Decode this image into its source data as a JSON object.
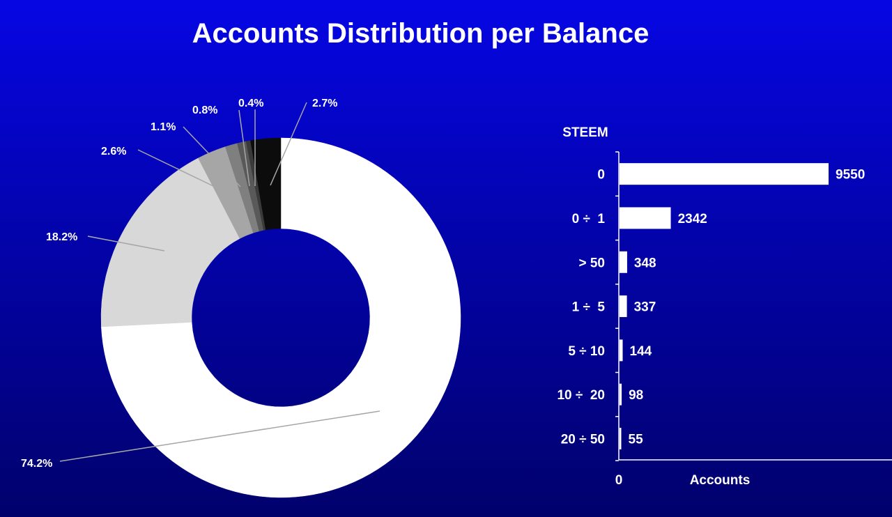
{
  "title": "Accounts Distribution per Balance",
  "chart_data": [
    {
      "type": "pie",
      "variant": "donut",
      "slices": [
        {
          "label": "74.2%",
          "value": 74.2,
          "color": "#ffffff"
        },
        {
          "label": "18.2%",
          "value": 18.2,
          "color": "#d8d8d8"
        },
        {
          "label": "2.6%",
          "value": 2.6,
          "color": "#a6a6a6"
        },
        {
          "label": "1.1%",
          "value": 1.1,
          "color": "#7f7f7f"
        },
        {
          "label": "0.8%",
          "value": 0.8,
          "color": "#595959"
        },
        {
          "label": "0.4%",
          "value": 0.4,
          "color": "#3a3a3a"
        },
        {
          "label": "2.7%",
          "value": 2.7,
          "color": "#0c0c0c"
        }
      ],
      "start": "12 o'clock",
      "direction": "clockwise",
      "leader_line_color": "#a6a6a6"
    },
    {
      "type": "bar",
      "orientation": "horizontal",
      "ylabel": "STEEM",
      "xlabel": "Accounts",
      "x_tick_labels": [
        "0"
      ],
      "xlim": [
        0,
        10000
      ],
      "categories": [
        "0",
        "0 ÷  1",
        "> 50",
        "1 ÷  5",
        "5 ÷ 10",
        "10 ÷  20",
        "20 ÷ 50"
      ],
      "values": [
        9550,
        2342,
        348,
        337,
        144,
        98,
        55
      ],
      "data_labels": [
        "9550",
        "2342",
        "348",
        "337",
        "144",
        "98",
        "55"
      ],
      "bar_color": "#ffffff",
      "grid": false,
      "legend": "none"
    }
  ]
}
